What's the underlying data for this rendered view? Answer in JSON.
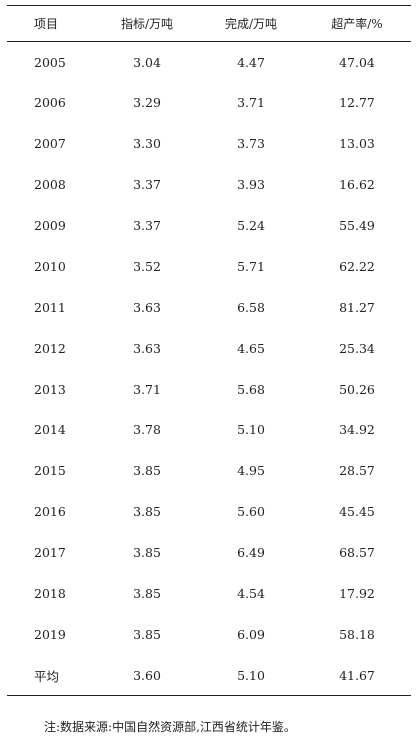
{
  "chart_data": {
    "type": "table",
    "columns": [
      "项目",
      "指标/万吨",
      "完成/万吨",
      "超产率/%"
    ],
    "rows": [
      [
        "2005",
        "3.04",
        "4.47",
        "47.04"
      ],
      [
        "2006",
        "3.29",
        "3.71",
        "12.77"
      ],
      [
        "2007",
        "3.30",
        "3.73",
        "13.03"
      ],
      [
        "2008",
        "3.37",
        "3.93",
        "16.62"
      ],
      [
        "2009",
        "3.37",
        "5.24",
        "55.49"
      ],
      [
        "2010",
        "3.52",
        "5.71",
        "62.22"
      ],
      [
        "2011",
        "3.63",
        "6.58",
        "81.27"
      ],
      [
        "2012",
        "3.63",
        "4.65",
        "25.34"
      ],
      [
        "2013",
        "3.71",
        "5.68",
        "50.26"
      ],
      [
        "2014",
        "3.78",
        "5.10",
        "34.92"
      ],
      [
        "2015",
        "3.85",
        "4.95",
        "28.57"
      ],
      [
        "2016",
        "3.85",
        "5.60",
        "45.45"
      ],
      [
        "2017",
        "3.85",
        "6.49",
        "68.57"
      ],
      [
        "2018",
        "3.85",
        "4.54",
        "17.92"
      ],
      [
        "2019",
        "3.85",
        "6.09",
        "58.18"
      ],
      [
        "平均",
        "3.60",
        "5.10",
        "41.67"
      ]
    ]
  },
  "note": "注:数据来源:中国自然资源部,江西省统计年鉴。"
}
